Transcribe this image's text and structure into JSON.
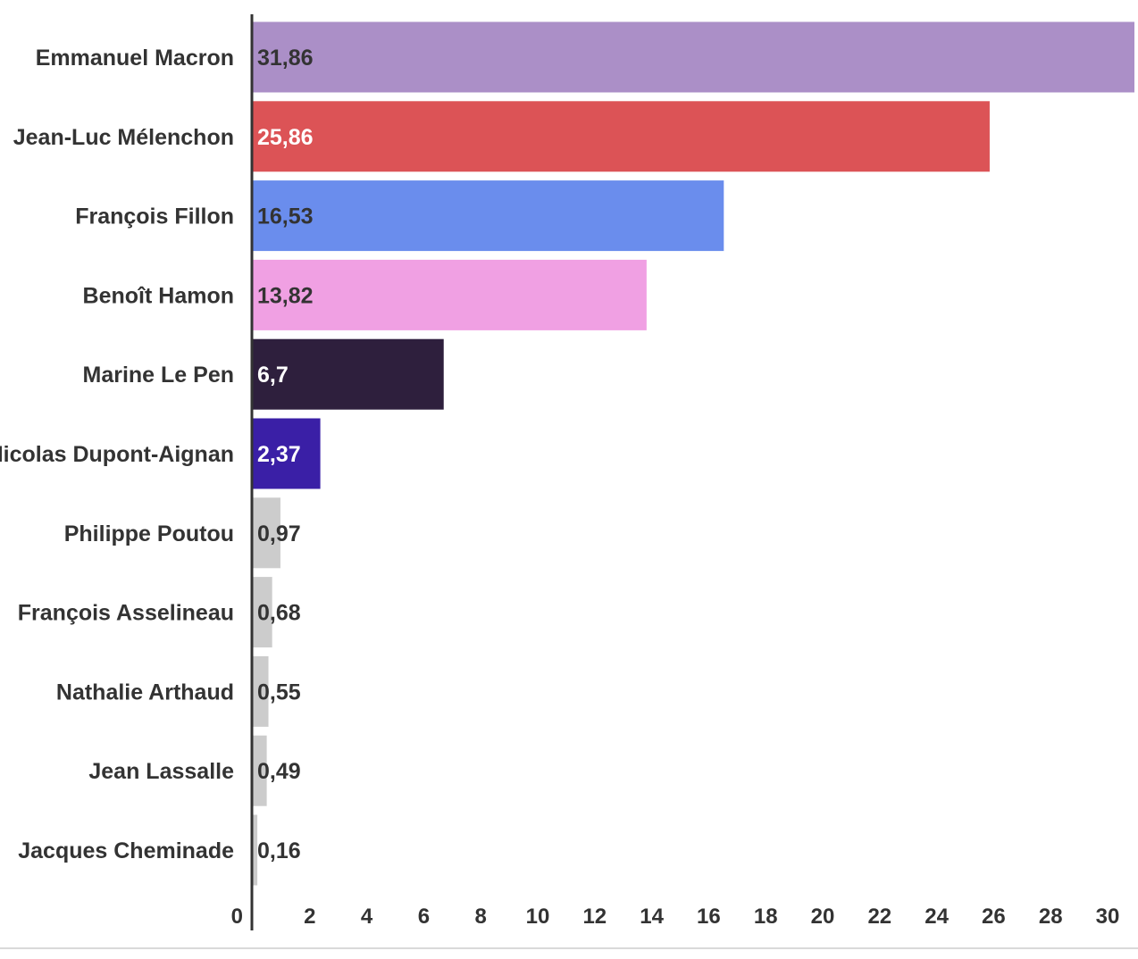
{
  "chart_data": {
    "type": "bar",
    "orientation": "horizontal",
    "categories": [
      "Emmanuel Macron",
      "Jean-Luc Mélenchon",
      "François Fillon",
      "Benoît Hamon",
      "Marine Le Pen",
      "Nicolas Dupont-Aignan",
      "Philippe Poutou",
      "François Asselineau",
      "Nathalie Arthaud",
      "Jean Lassalle",
      "Jacques Cheminade"
    ],
    "values": [
      31.86,
      25.86,
      16.53,
      13.82,
      6.7,
      2.37,
      0.97,
      0.68,
      0.55,
      0.49,
      0.16
    ],
    "value_labels": [
      "31,86",
      "25,86",
      "16,53",
      "13,82",
      "6,7",
      "2,37",
      "0,97",
      "0,68",
      "0,55",
      "0,49",
      "0,16"
    ],
    "colors": [
      "#ab8fc7",
      "#dc5356",
      "#6a8ded",
      "#f0a0e3",
      "#2e1f3d",
      "#3a1fa6",
      "#cccccc",
      "#cccccc",
      "#cccccc",
      "#cccccc",
      "#cccccc"
    ],
    "label_colors": [
      "#333333",
      "#ffffff",
      "#333333",
      "#333333",
      "#ffffff",
      "#ffffff",
      "#333333",
      "#333333",
      "#333333",
      "#333333",
      "#333333"
    ],
    "xlim": [
      0,
      31.86
    ],
    "xticks": [
      0,
      2,
      4,
      6,
      8,
      10,
      12,
      14,
      16,
      18,
      20,
      22,
      24,
      26,
      28,
      30
    ],
    "grid": false,
    "legend": "none",
    "title": "",
    "xlabel": "",
    "ylabel": ""
  }
}
